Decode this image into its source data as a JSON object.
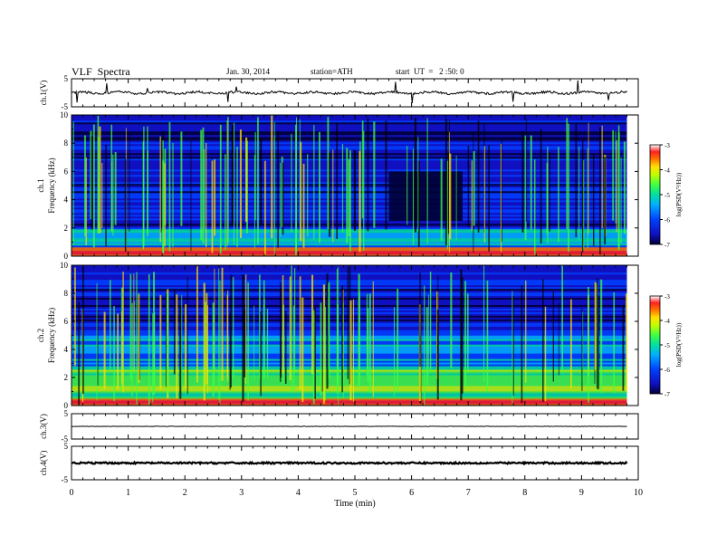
{
  "header": {
    "title": "VLF  Spectra",
    "date": "Jan. 30, 2014",
    "station": "station=ATH",
    "start_ut": "start  UT  =   2 :50: 0"
  },
  "colors": {
    "background": "#ffffff",
    "axis": "#000000",
    "trace": "#000000",
    "colormap": [
      "#000033",
      "#1010c0",
      "#0040ff",
      "#00b0ff",
      "#00e0a0",
      "#40ff40",
      "#c0ff00",
      "#ffe000",
      "#ff7000",
      "#ff2020",
      "#ffffff"
    ]
  },
  "chart_data": [
    {
      "type": "line",
      "panel": "ch1-waveform",
      "ylabel": "ch.1(V)",
      "ylim": [
        -5,
        5
      ],
      "y_ticks": [
        "5",
        "-5"
      ],
      "xlim": [
        0,
        10
      ],
      "baseline_v": 0.0,
      "description_level": "noisy near 0 V with occasional spikes"
    },
    {
      "type": "heatmap",
      "panel": "ch1-spectrogram",
      "ylabel_top": "ch.1",
      "ylabel": "Frequency  (kHz)",
      "ylim": [
        0,
        10
      ],
      "y_ticks": [
        "0",
        "2",
        "4",
        "6",
        "8",
        "10"
      ],
      "xlim": [
        0,
        9.8
      ],
      "colorbar": {
        "label": "log(PSD(V²/Hz))",
        "range": [
          -7,
          -3
        ],
        "ticks": [
          "-3",
          "-4",
          "-5",
          "-6",
          "-7"
        ]
      },
      "features": [
        {
          "band_khz": [
            0,
            0.6
          ],
          "level": -3.3
        },
        {
          "band_khz": [
            0.6,
            2.0
          ],
          "level": -5.5
        },
        {
          "band_khz": [
            2.0,
            10.0
          ],
          "level": -6.3
        },
        {
          "quiet_interval_min": [
            5.6,
            6.9
          ],
          "band_khz": [
            2.5,
            6.0
          ],
          "level": -6.8
        }
      ]
    },
    {
      "type": "heatmap",
      "panel": "ch2-spectrogram",
      "ylabel_top": "ch.2",
      "ylabel": "Frequency  (kHz)",
      "ylim": [
        0,
        10
      ],
      "y_ticks": [
        "0",
        "2",
        "4",
        "6",
        "8",
        "10"
      ],
      "xlim": [
        0,
        9.8
      ],
      "colorbar": {
        "label": "log(PSD(V²/Hz))",
        "range": [
          -7,
          -3
        ],
        "ticks": [
          "-3",
          "-4",
          "-5",
          "-6",
          "-7"
        ]
      },
      "features": [
        {
          "band_khz": [
            0,
            0.4
          ],
          "level": -3.3
        },
        {
          "band_khz": [
            0.4,
            2.6
          ],
          "level": -4.8
        },
        {
          "band_khz": [
            2.6,
            5.0
          ],
          "level": -5.6
        },
        {
          "band_khz": [
            5.0,
            10.0
          ],
          "level": -6.3
        }
      ]
    },
    {
      "type": "line",
      "panel": "ch3-waveform",
      "ylabel": "ch.3(V)",
      "ylim": [
        -5,
        5
      ],
      "y_ticks": [
        "5",
        "-5"
      ],
      "xlim": [
        0,
        10
      ],
      "baseline_v": 0.0
    },
    {
      "type": "line",
      "panel": "ch4-waveform",
      "ylabel": "ch.4(V)",
      "ylim": [
        -5,
        5
      ],
      "y_ticks": [
        "5",
        "-5"
      ],
      "xlim": [
        0,
        10
      ],
      "baseline_v": 0.0
    }
  ],
  "x_axis": {
    "label": "Time  (min)",
    "range": [
      0,
      10
    ],
    "ticks": [
      "0",
      "1",
      "2",
      "3",
      "4",
      "5",
      "6",
      "7",
      "8",
      "9",
      "10"
    ]
  }
}
